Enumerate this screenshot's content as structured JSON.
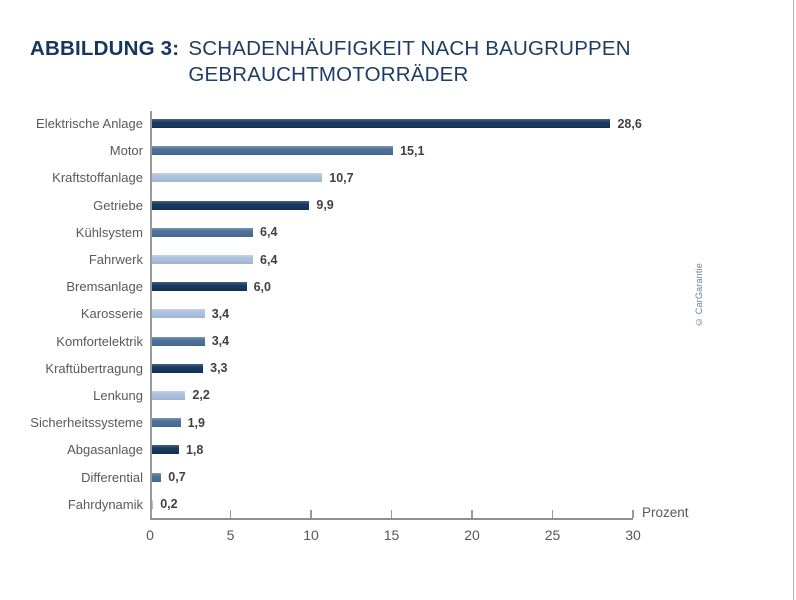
{
  "title": {
    "figure_label": "ABBILDUNG 3:",
    "line1": "SCHADENHÄUFIGKEIT NACH BAUGRUPPEN",
    "line2": "GEBRAUCHTMOTORRÄDER"
  },
  "credit": "© CarGarantie",
  "chart_data": {
    "type": "bar",
    "orientation": "horizontal",
    "title": "Schadenhäufigkeit nach Baugruppen Gebrauchtmotorräder",
    "categories": [
      "Elektrische Anlage",
      "Motor",
      "Kraftstoffanlage",
      "Getriebe",
      "Kühlsystem",
      "Fahrwerk",
      "Bremsanlage",
      "Karosserie",
      "Komfortelektrik",
      "Kraftübertragung",
      "Lenkung",
      "Sicherheitssysteme",
      "Abgasanlage",
      "Differential",
      "Fahrdynamik"
    ],
    "values": [
      28.6,
      15.1,
      10.7,
      9.9,
      6.4,
      6.4,
      6.0,
      3.4,
      3.4,
      3.3,
      2.2,
      1.9,
      1.8,
      0.7,
      0.2
    ],
    "value_labels": [
      "28,6",
      "15,1",
      "10,7",
      "9,9",
      "6,4",
      "6,4",
      "6,0",
      "3,4",
      "3,4",
      "3,3",
      "2,2",
      "1,9",
      "1,8",
      "0,7",
      "0,2"
    ],
    "bar_color_keys": [
      "dark",
      "medium",
      "light",
      "dark",
      "medium",
      "light",
      "dark",
      "light",
      "medium",
      "dark",
      "light",
      "medium",
      "dark",
      "medium",
      "light"
    ],
    "colors": {
      "dark": "#17395e",
      "medium": "#4b6e97",
      "light": "#a9bedb"
    },
    "xlabel": "Prozent",
    "xlim": [
      0,
      30
    ],
    "xticks": [
      0,
      5,
      10,
      15,
      20,
      25,
      30
    ],
    "grid": false,
    "legend": false
  }
}
